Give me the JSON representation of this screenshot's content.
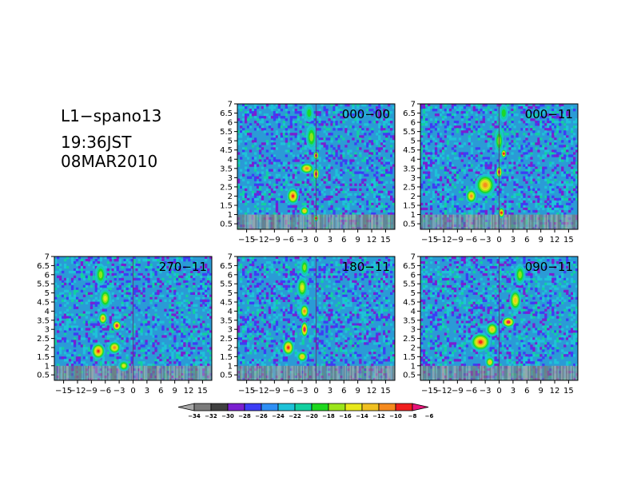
{
  "title": {
    "line1": "L1−spano13",
    "line2": "19:36JST",
    "line3": "08MAR2010"
  },
  "colors": {
    "background": "#2a9bd6",
    "levels": [
      "#a8a8a8",
      "#7a7a7a",
      "#404040",
      "#7a1fd0",
      "#3d3df5",
      "#2f8ff5",
      "#1ec2d8",
      "#12d0a0",
      "#1ed81e",
      "#9be51a",
      "#e8e81a",
      "#f0c020",
      "#f58a1e",
      "#f01e1e",
      "#e8157a"
    ]
  },
  "chart_data": {
    "type": "heatmap",
    "x_ticks": [
      "−15",
      "−12",
      "−9",
      "−6",
      "−3",
      "0",
      "3",
      "6",
      "9",
      "12",
      "15"
    ],
    "x_tick_values": [
      -15,
      -12,
      -9,
      -6,
      -3,
      0,
      3,
      6,
      9,
      12,
      15
    ],
    "y_ticks": [
      "0.5",
      "1",
      "1.5",
      "2",
      "2.5",
      "3",
      "3.5",
      "4",
      "4.5",
      "5",
      "5.5",
      "6",
      "6.5",
      "7"
    ],
    "y_tick_values": [
      0.5,
      1,
      1.5,
      2,
      2.5,
      3,
      3.5,
      4,
      4.5,
      5,
      5.5,
      6,
      6.5,
      7
    ],
    "xlim": [
      -17,
      17
    ],
    "ylim": [
      0.2,
      7
    ],
    "colorbar": {
      "labels": [
        "−34",
        "−32",
        "−30",
        "−28",
        "−26",
        "−24",
        "−22",
        "−20",
        "−18",
        "−16",
        "−14",
        "−12",
        "−10",
        "−8",
        "−6"
      ],
      "values": [
        -34,
        -32,
        -30,
        -28,
        -26,
        -24,
        -22,
        -20,
        -18,
        -16,
        -14,
        -12,
        -10,
        -8,
        -6
      ]
    },
    "panels": [
      {
        "label": "000−00",
        "blobs": [
          {
            "x": 0,
            "y": 3.2,
            "sx": 0.7,
            "sy": 0.35,
            "v": -6
          },
          {
            "x": 0,
            "y": 4.2,
            "sx": 0.6,
            "sy": 0.25,
            "v": -7
          },
          {
            "x": -2.0,
            "y": 3.5,
            "sx": 1.6,
            "sy": 0.3,
            "v": -11
          },
          {
            "x": -5.0,
            "y": 2.0,
            "sx": 1.3,
            "sy": 0.45,
            "v": -9
          },
          {
            "x": -2.5,
            "y": 1.2,
            "sx": 1.0,
            "sy": 0.25,
            "v": -12
          },
          {
            "x": 0,
            "y": 0.8,
            "sx": 0.5,
            "sy": 0.2,
            "v": -8
          },
          {
            "x": -1.0,
            "y": 5.2,
            "sx": 1.2,
            "sy": 0.7,
            "v": -16
          },
          {
            "x": -1.5,
            "y": 6.5,
            "sx": 1.0,
            "sy": 0.5,
            "v": -18
          }
        ]
      },
      {
        "label": "000−11",
        "blobs": [
          {
            "x": 0,
            "y": 3.3,
            "sx": 0.7,
            "sy": 0.35,
            "v": -7
          },
          {
            "x": 1.0,
            "y": 4.3,
            "sx": 0.6,
            "sy": 0.25,
            "v": -9
          },
          {
            "x": -3.0,
            "y": 2.6,
            "sx": 2.2,
            "sy": 0.6,
            "v": -11
          },
          {
            "x": -6.0,
            "y": 2.0,
            "sx": 1.2,
            "sy": 0.4,
            "v": -10
          },
          {
            "x": 0.5,
            "y": 1.1,
            "sx": 0.7,
            "sy": 0.3,
            "v": -8
          },
          {
            "x": 0,
            "y": 5.0,
            "sx": 1.0,
            "sy": 0.7,
            "v": -16
          },
          {
            "x": 1.0,
            "y": 6.5,
            "sx": 1.0,
            "sy": 0.5,
            "v": -18
          }
        ]
      },
      {
        "label": "270−11",
        "blobs": [
          {
            "x": -3.5,
            "y": 3.2,
            "sx": 1.0,
            "sy": 0.3,
            "v": -6
          },
          {
            "x": -6.5,
            "y": 3.6,
            "sx": 1.0,
            "sy": 0.35,
            "v": -10
          },
          {
            "x": -7.5,
            "y": 1.8,
            "sx": 1.5,
            "sy": 0.45,
            "v": -8
          },
          {
            "x": -4.0,
            "y": 2.0,
            "sx": 1.4,
            "sy": 0.35,
            "v": -11
          },
          {
            "x": -6.0,
            "y": 4.7,
            "sx": 1.3,
            "sy": 0.55,
            "v": -14
          },
          {
            "x": -7.0,
            "y": 6.0,
            "sx": 1.2,
            "sy": 0.6,
            "v": -16
          },
          {
            "x": -2.0,
            "y": 1.0,
            "sx": 1.2,
            "sy": 0.3,
            "v": -14
          }
        ]
      },
      {
        "label": "180−11",
        "blobs": [
          {
            "x": -2.5,
            "y": 3.0,
            "sx": 0.8,
            "sy": 0.45,
            "v": -6
          },
          {
            "x": -2.5,
            "y": 4.0,
            "sx": 1.0,
            "sy": 0.4,
            "v": -11
          },
          {
            "x": -6.0,
            "y": 2.0,
            "sx": 1.3,
            "sy": 0.45,
            "v": -9
          },
          {
            "x": -3.0,
            "y": 1.5,
            "sx": 1.2,
            "sy": 0.3,
            "v": -12
          },
          {
            "x": -3.0,
            "y": 5.3,
            "sx": 1.2,
            "sy": 0.6,
            "v": -15
          },
          {
            "x": -2.5,
            "y": 6.4,
            "sx": 1.0,
            "sy": 0.5,
            "v": -17
          }
        ]
      },
      {
        "label": "090−11",
        "blobs": [
          {
            "x": 2.0,
            "y": 3.4,
            "sx": 1.4,
            "sy": 0.3,
            "v": -6
          },
          {
            "x": -4.0,
            "y": 2.3,
            "sx": 2.2,
            "sy": 0.5,
            "v": -8
          },
          {
            "x": -1.5,
            "y": 3.0,
            "sx": 1.4,
            "sy": 0.4,
            "v": -12
          },
          {
            "x": 3.5,
            "y": 4.6,
            "sx": 1.3,
            "sy": 0.6,
            "v": -13
          },
          {
            "x": 4.5,
            "y": 6.0,
            "sx": 1.2,
            "sy": 0.6,
            "v": -16
          },
          {
            "x": -2.0,
            "y": 1.2,
            "sx": 1.0,
            "sy": 0.3,
            "v": -13
          }
        ]
      }
    ]
  }
}
